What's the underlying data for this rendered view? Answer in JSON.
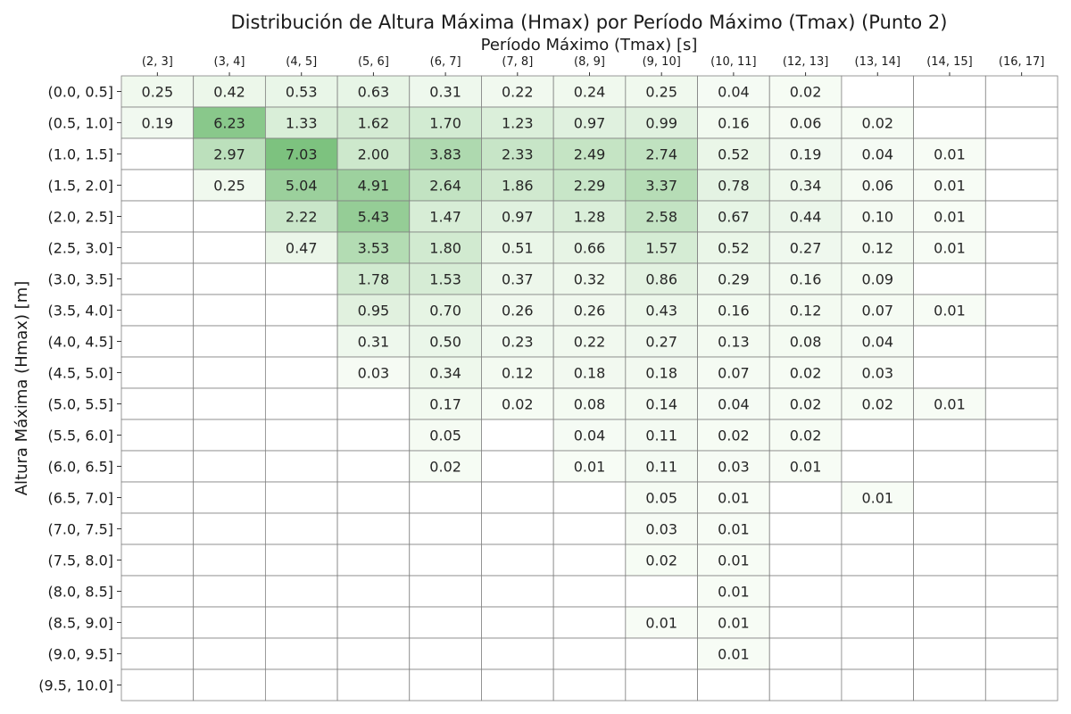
{
  "chart_data": {
    "type": "heatmap",
    "title": "Distribución de Altura Máxima (Hmax) por Período Máximo (Tmax) (Punto 2)",
    "xlabel": "Período Máximo (Tmax) [s]",
    "ylabel": "Altura Máxima (Hmax) [m]",
    "x_categories": [
      "(2, 3]",
      "(3, 4]",
      "(4, 5]",
      "(5, 6]",
      "(6, 7]",
      "(7, 8]",
      "(8, 9]",
      "(9, 10]",
      "(10, 11]",
      "(12, 13]",
      "(13, 14]",
      "(14, 15]",
      "(16, 17]"
    ],
    "y_categories": [
      "(0.0, 0.5]",
      "(0.5, 1.0]",
      "(1.0, 1.5]",
      "(1.5, 2.0]",
      "(2.0, 2.5]",
      "(2.5, 3.0]",
      "(3.0, 3.5]",
      "(3.5, 4.0]",
      "(4.0, 4.5]",
      "(4.5, 5.0]",
      "(5.0, 5.5]",
      "(5.5, 6.0]",
      "(6.0, 6.5]",
      "(6.5, 7.0]",
      "(7.0, 7.5]",
      "(7.5, 8.0]",
      "(8.0, 8.5]",
      "(8.5, 9.0]",
      "(9.0, 9.5]",
      "(9.5, 10.0]"
    ],
    "values": [
      [
        0.25,
        0.42,
        0.53,
        0.63,
        0.31,
        0.22,
        0.24,
        0.25,
        0.04,
        0.02,
        null,
        null,
        null
      ],
      [
        0.19,
        6.23,
        1.33,
        1.62,
        1.7,
        1.23,
        0.97,
        0.99,
        0.16,
        0.06,
        0.02,
        null,
        null
      ],
      [
        null,
        2.97,
        7.03,
        2.0,
        3.83,
        2.33,
        2.49,
        2.74,
        0.52,
        0.19,
        0.04,
        0.01,
        null
      ],
      [
        null,
        0.25,
        5.04,
        4.91,
        2.64,
        1.86,
        2.29,
        3.37,
        0.78,
        0.34,
        0.06,
        0.01,
        null
      ],
      [
        null,
        null,
        2.22,
        5.43,
        1.47,
        0.97,
        1.28,
        2.58,
        0.67,
        0.44,
        0.1,
        0.01,
        null
      ],
      [
        null,
        null,
        0.47,
        3.53,
        1.8,
        0.51,
        0.66,
        1.57,
        0.52,
        0.27,
        0.12,
        0.01,
        null
      ],
      [
        null,
        null,
        null,
        1.78,
        1.53,
        0.37,
        0.32,
        0.86,
        0.29,
        0.16,
        0.09,
        null,
        null
      ],
      [
        null,
        null,
        null,
        0.95,
        0.7,
        0.26,
        0.26,
        0.43,
        0.16,
        0.12,
        0.07,
        0.01,
        null
      ],
      [
        null,
        null,
        null,
        0.31,
        0.5,
        0.23,
        0.22,
        0.27,
        0.13,
        0.08,
        0.04,
        null,
        null
      ],
      [
        null,
        null,
        null,
        0.03,
        0.34,
        0.12,
        0.18,
        0.18,
        0.07,
        0.02,
        0.03,
        null,
        null
      ],
      [
        null,
        null,
        null,
        null,
        0.17,
        0.02,
        0.08,
        0.14,
        0.04,
        0.02,
        0.02,
        0.01,
        null
      ],
      [
        null,
        null,
        null,
        null,
        0.05,
        null,
        0.04,
        0.11,
        0.02,
        0.02,
        null,
        null,
        null
      ],
      [
        null,
        null,
        null,
        null,
        0.02,
        null,
        0.01,
        0.11,
        0.03,
        0.01,
        null,
        null,
        null
      ],
      [
        null,
        null,
        null,
        null,
        null,
        null,
        null,
        0.05,
        0.01,
        null,
        0.01,
        null,
        null
      ],
      [
        null,
        null,
        null,
        null,
        null,
        null,
        null,
        0.03,
        0.01,
        null,
        null,
        null,
        null
      ],
      [
        null,
        null,
        null,
        null,
        null,
        null,
        null,
        0.02,
        0.01,
        null,
        null,
        null,
        null
      ],
      [
        null,
        null,
        null,
        null,
        null,
        null,
        null,
        null,
        0.01,
        null,
        null,
        null,
        null
      ],
      [
        null,
        null,
        null,
        null,
        null,
        null,
        null,
        0.01,
        0.01,
        null,
        null,
        null,
        null
      ],
      [
        null,
        null,
        null,
        null,
        null,
        null,
        null,
        null,
        0.01,
        null,
        null,
        null,
        null
      ],
      [
        null,
        null,
        null,
        null,
        null,
        null,
        null,
        null,
        null,
        null,
        null,
        null,
        null
      ]
    ],
    "colormap": {
      "low": "#f7fcf5",
      "high": "#7dc27f"
    },
    "grid_color": "#808080",
    "x_axis_position": "top",
    "annotations": "cell values shown with 2 decimals"
  }
}
